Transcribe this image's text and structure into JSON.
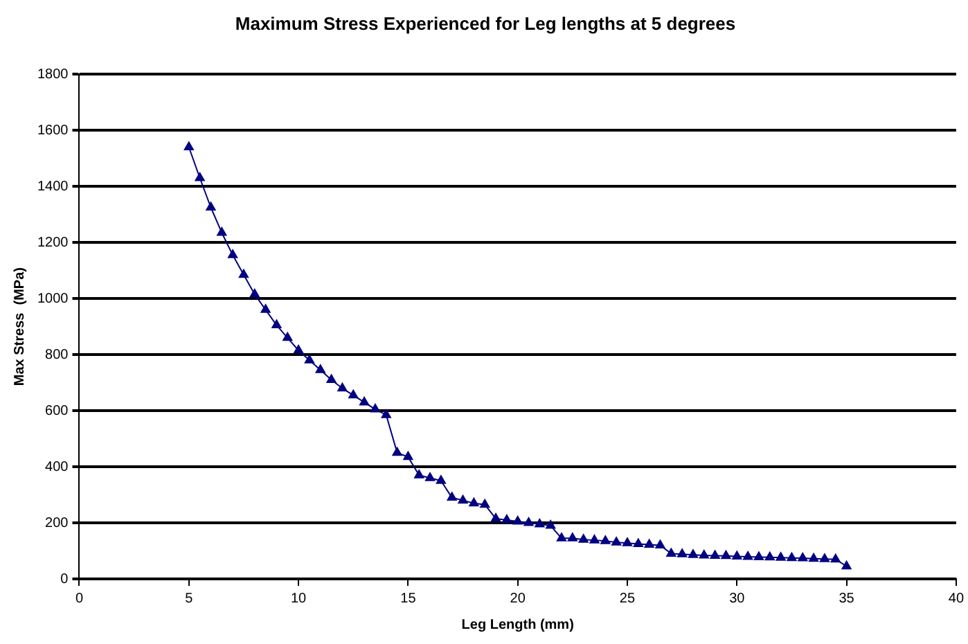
{
  "chart_data": {
    "type": "line",
    "title": "Maximum Stress Experienced for Leg lengths at 5 degrees",
    "xlabel": "Leg Length (mm)",
    "ylabel": "Max Stress  (MPa)",
    "x": [
      5,
      5.5,
      6,
      6.5,
      7,
      7.5,
      8,
      8.5,
      9,
      9.5,
      10,
      10.5,
      11,
      11.5,
      12,
      12.5,
      13,
      13.5,
      14,
      14.5,
      15,
      15.5,
      16,
      16.5,
      17,
      17.5,
      18,
      18.5,
      19,
      19.5,
      20,
      20.5,
      21,
      21.5,
      22,
      22.5,
      23,
      23.5,
      24,
      24.5,
      25,
      25.5,
      26,
      26.5,
      27,
      27.5,
      28,
      28.5,
      29,
      29.5,
      30,
      30.5,
      31,
      31.5,
      32,
      32.5,
      33,
      33.5,
      34,
      34.5,
      35
    ],
    "series": [
      {
        "color": "#000080",
        "values": [
          1540,
          1430,
          1325,
          1235,
          1155,
          1085,
          1015,
          960,
          905,
          860,
          815,
          780,
          745,
          710,
          680,
          655,
          630,
          605,
          585,
          450,
          435,
          370,
          360,
          350,
          290,
          280,
          270,
          265,
          215,
          210,
          205,
          200,
          195,
          190,
          145,
          145,
          140,
          138,
          135,
          130,
          128,
          125,
          122,
          120,
          90,
          88,
          86,
          84,
          83,
          82,
          80,
          79,
          78,
          77,
          76,
          75,
          74,
          72,
          71,
          70,
          45
        ]
      }
    ],
    "xlim": [
      0,
      40
    ],
    "xticks": [
      0,
      5,
      10,
      15,
      20,
      25,
      30,
      35,
      40
    ],
    "ylim": [
      0,
      1800
    ],
    "yticks": [
      0,
      200,
      400,
      600,
      800,
      1000,
      1200,
      1400,
      1600,
      1800
    ],
    "grid": "y",
    "legend": false,
    "marker": "triangle",
    "line_style": "solid"
  }
}
